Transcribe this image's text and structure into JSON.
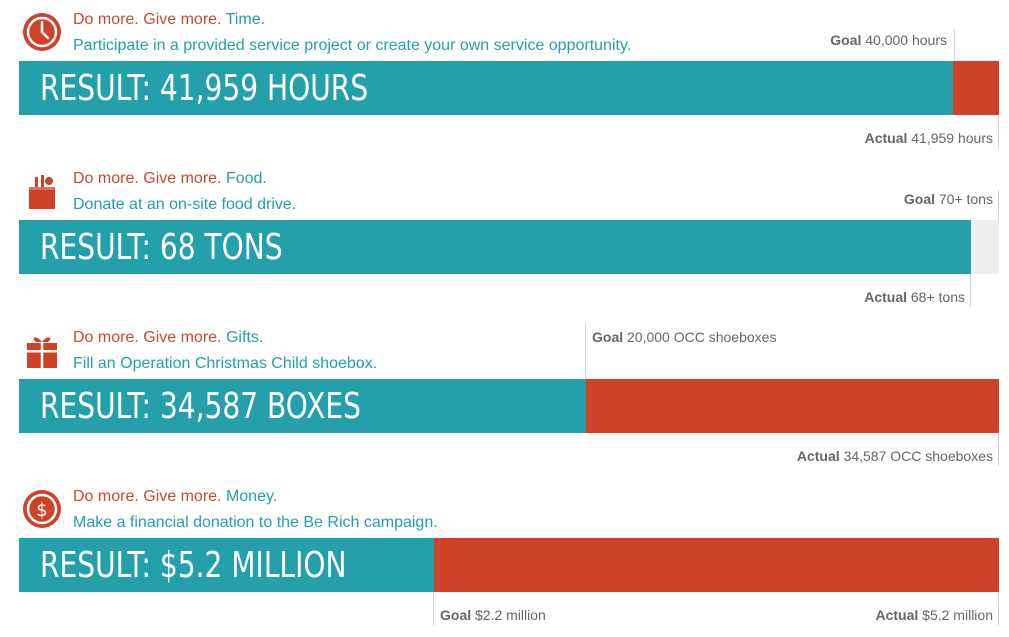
{
  "heading_prefix": "Do more. Give more.",
  "goal_word": "Goal",
  "actual_word": "Actual",
  "colors": {
    "teal": "#23a0aa",
    "red": "#cf4129",
    "grey": "#eeeeee",
    "text_red": "#c94a2e",
    "text_teal": "#23a0aa"
  },
  "chart_data": [
    {
      "type": "bar",
      "icon": "clock-icon",
      "category": "Time.",
      "description": "Participate in a provided service project or create your own service opportunity.",
      "result_text": "RESULT: 41,959 HOURS",
      "goal_text": "40,000 hours",
      "actual_text": "41,959 hours",
      "goal_value": 40000,
      "actual_value": 41959,
      "scale_max": 41959
    },
    {
      "type": "bar",
      "icon": "grocery-bag-icon",
      "category": "Food.",
      "description": "Donate at an on-site food drive.",
      "result_text": "RESULT: 68 TONS",
      "goal_text": "70+ tons",
      "actual_text": "68+ tons",
      "goal_value": 70,
      "actual_value": 68,
      "scale_max": 70
    },
    {
      "type": "bar",
      "icon": "gift-icon",
      "category": "Gifts.",
      "description": "Fill an Operation Christmas Child shoebox.",
      "result_text": "RESULT: 34,587 BOXES",
      "goal_text": "20,000 OCC shoeboxes",
      "actual_text": "34,587 OCC shoeboxes",
      "goal_value": 20000,
      "actual_value": 34587,
      "scale_max": 34587
    },
    {
      "type": "bar",
      "icon": "dollar-coin-icon",
      "category": "Money.",
      "description": "Make a financial donation to the Be Rich campaign.",
      "result_text": "RESULT: $5.2 MILLION",
      "goal_text": "$2.2 million",
      "actual_text": "$5.2 million",
      "goal_value": 2.2,
      "actual_value": 5.2,
      "scale_max": 5.2
    }
  ]
}
